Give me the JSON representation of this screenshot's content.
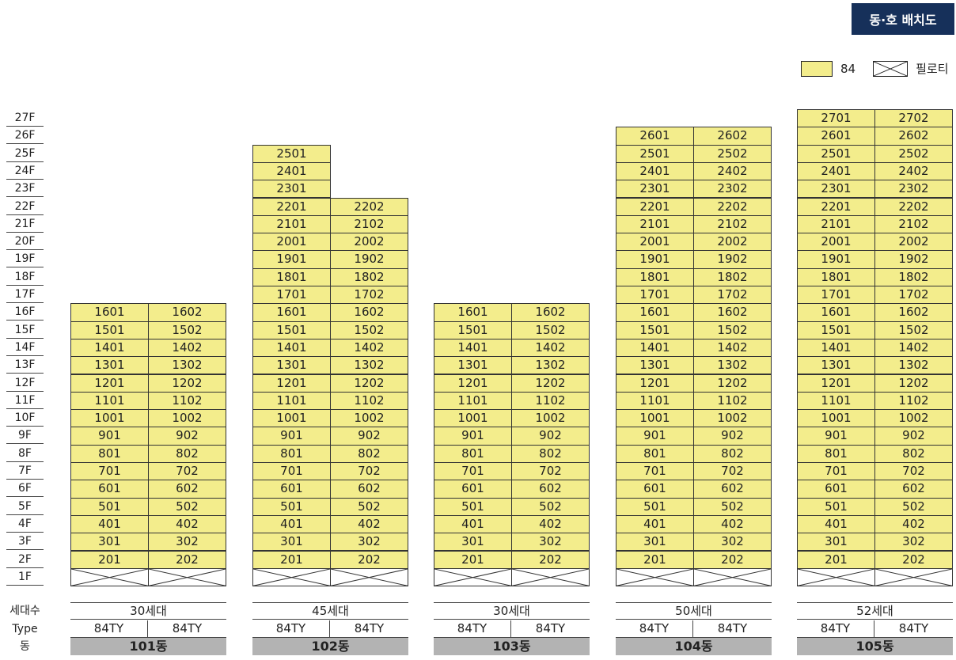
{
  "title": "동·호 배치도",
  "legend": {
    "type_label": "84",
    "pilotis_label": "필로티",
    "type_color": "#f3ed8c"
  },
  "floors": [
    "27F",
    "26F",
    "25F",
    "24F",
    "23F",
    "22F",
    "21F",
    "20F",
    "19F",
    "18F",
    "17F",
    "16F",
    "15F",
    "14F",
    "13F",
    "12F",
    "11F",
    "10F",
    "9F",
    "8F",
    "7F",
    "6F",
    "5F",
    "4F",
    "3F",
    "2F",
    "1F"
  ],
  "row_headers": {
    "households": "세대수",
    "type": "Type",
    "building": "동"
  },
  "buildings": [
    {
      "name": "101동",
      "households": "30세대",
      "types": [
        "84TY",
        "84TY"
      ],
      "col1_max_floor": 16,
      "col2_max_floor": 16
    },
    {
      "name": "102동",
      "households": "45세대",
      "types": [
        "84TY",
        "84TY"
      ],
      "col1_max_floor": 25,
      "col2_max_floor": 22
    },
    {
      "name": "103동",
      "households": "30세대",
      "types": [
        "84TY",
        "84TY"
      ],
      "col1_max_floor": 16,
      "col2_max_floor": 16
    },
    {
      "name": "104동",
      "households": "50세대",
      "types": [
        "84TY",
        "84TY"
      ],
      "col1_max_floor": 26,
      "col2_max_floor": 26
    },
    {
      "name": "105동",
      "households": "52세대",
      "types": [
        "84TY",
        "84TY"
      ],
      "col1_max_floor": 27,
      "col2_max_floor": 27
    }
  ]
}
